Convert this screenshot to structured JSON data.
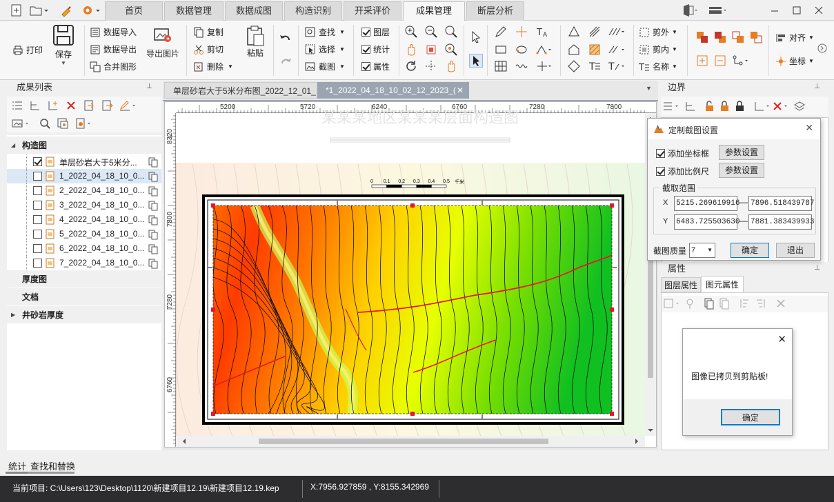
{
  "tabs": {
    "items": [
      "首页",
      "数据管理",
      "数据成图",
      "构造识别",
      "开采评价",
      "成果管理",
      "断层分析"
    ],
    "active": 5
  },
  "ribbon": {
    "print": "打印",
    "save": "保存",
    "data_import": "数据导入",
    "data_export": "数据导出",
    "merge": "合并图形",
    "export_img": "导出图片",
    "copy": "复制",
    "cut": "剪切",
    "delete": "删除",
    "paste": "粘贴",
    "find": "查找",
    "select": "选择",
    "screenshot": "截图",
    "layer": "图层",
    "stats": "统计",
    "attr": "属性",
    "clip_out": "剪外",
    "clip_in": "剪内",
    "name": "名称",
    "align": "对齐",
    "coord": "坐标"
  },
  "leftpanel": {
    "title": "成果列表",
    "cat_struct": "构造图",
    "items": [
      {
        "label": "单层砂岩大于5米分...",
        "checked": true
      },
      {
        "label": "1_2022_04_18_10_0...",
        "checked": false
      },
      {
        "label": "2_2022_04_18_10_0...",
        "checked": false
      },
      {
        "label": "3_2022_04_18_10_0...",
        "checked": false
      },
      {
        "label": "4_2022_04_18_10_0...",
        "checked": false
      },
      {
        "label": "5_2022_04_18_10_0...",
        "checked": false
      },
      {
        "label": "6_2022_04_18_10_0...",
        "checked": false
      },
      {
        "label": "7_2022_04_18_10_0...",
        "checked": false
      }
    ],
    "cat_thick": "厚度图",
    "cat_doc": "文档",
    "cat_well": "井砂岩厚度"
  },
  "doc": {
    "tab1": "单层砂岩大于5米分布图_2022_12_01_",
    "tab2": "*1_2022_04_18_10_02_12_2023_(",
    "ruler_x": [
      "5200",
      "5720",
      "6240",
      "6760",
      "7280",
      "7800"
    ],
    "ruler_y": [
      "8320",
      "7800",
      "7280",
      "6760"
    ],
    "ghost_title": "某某某地区某某某层面构造图",
    "scale_labels": [
      "0",
      "0.1",
      "0.2",
      "0.3",
      "0.4",
      "0.5"
    ],
    "scale_unit": "千米"
  },
  "right": {
    "boundary_title": "边界",
    "props_title": "属性",
    "tab_layer": "图层属性",
    "tab_elem": "图元属性"
  },
  "dialog": {
    "title": "定制截图设置",
    "add_coord": "添加坐标框",
    "add_scale": "添加比例尺",
    "param_btn": "参数设置",
    "range_label": "截取范围",
    "x_label": "X",
    "y_label": "Y",
    "x_min": "5215.269619916",
    "x_max": "7896.518439787",
    "y_min": "6483.725503630",
    "y_max": "7881.383439933",
    "quality_label": "截图质量",
    "quality": "7",
    "ok": "确定",
    "cancel": "退出"
  },
  "msg": {
    "text": "图像已拷贝到剪贴板!",
    "ok": "确定"
  },
  "bottom": {
    "tab_stats": "统计",
    "tab_find": "查找和替换"
  },
  "status": {
    "project": "当前项目: C:\\Users\\123\\Desktop\\1120\\新建项目12.19\\新建项目12.19.kep",
    "coords": "X:7956.927859 , Y:8155.342969"
  }
}
